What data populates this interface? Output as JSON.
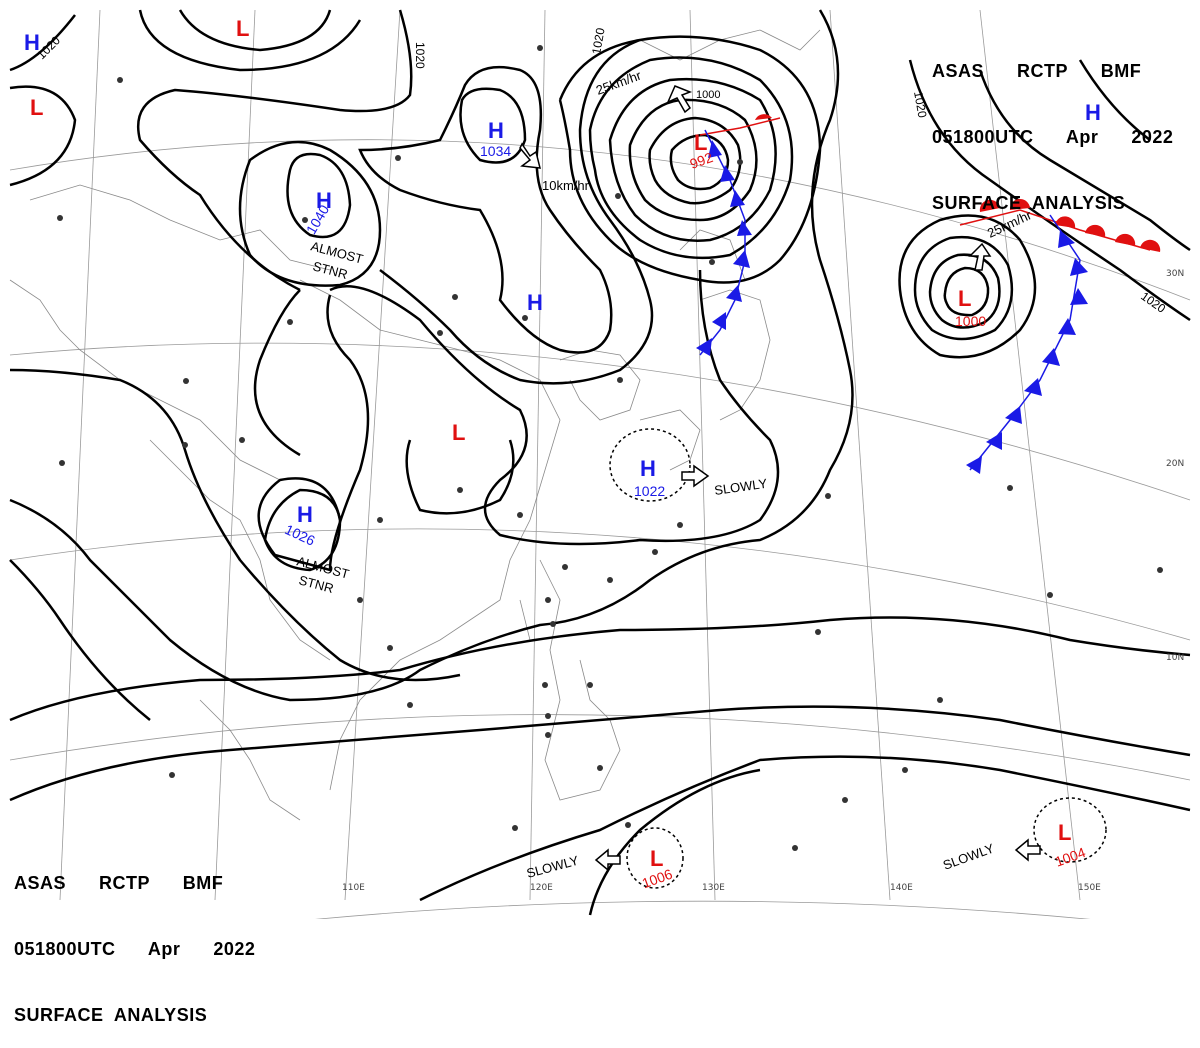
{
  "header_top": {
    "line1": "ASAS      RCTP      BMF",
    "line2": "051800UTC      Apr      2022",
    "line3": "SURFACE  ANALYSIS"
  },
  "header_bottom": {
    "line1": "ASAS      RCTP      BMF",
    "line2": "051800UTC      Apr      2022",
    "line3": "SURFACE  ANALYSIS"
  },
  "isobar_labels": {
    "a": "1020",
    "b": "1020",
    "c": "1020",
    "d": "1020",
    "e": "1020"
  },
  "pressure_centers": {
    "h1": {
      "letter": "H",
      "value": "1034"
    },
    "h2": {
      "letter": "H",
      "value": "1040"
    },
    "h3": {
      "letter": "H",
      "value": ""
    },
    "h4": {
      "letter": "H",
      "value": "1026"
    },
    "h5": {
      "letter": "H",
      "value": "1022"
    },
    "h6": {
      "letter": "H",
      "value": ""
    },
    "h7": {
      "letter": "H",
      "value": ""
    },
    "l1": {
      "letter": "L",
      "value": "992"
    },
    "l2": {
      "letter": "L",
      "value": "1000"
    },
    "l3": {
      "letter": "L",
      "value": ""
    },
    "l4": {
      "letter": "L",
      "value": ""
    },
    "l5": {
      "letter": "L",
      "value": ""
    },
    "l6": {
      "letter": "L",
      "value": "1006"
    },
    "l7": {
      "letter": "L",
      "value": "1004"
    }
  },
  "annotations": {
    "stnr1": "ALMOST",
    "stnr1b": "STNR",
    "stnr2": "ALMOST",
    "stnr2b": "STNR",
    "motion1": "25km/hr",
    "motion2": "10km/hr",
    "motion3": "25km/hr",
    "slowly1": "SLOWLY",
    "slowly2": "SLOWLY",
    "slowly3": "SLOWLY",
    "tiny_1000": "1000"
  },
  "graticule": {
    "lat_30": "30N",
    "lat_20": "20N",
    "lat_10": "10N",
    "lon_110": "110E",
    "lon_120": "120E",
    "lon_130": "130E",
    "lon_140": "140E",
    "lon_150": "150E"
  },
  "colors": {
    "high": "#1a1ae6",
    "low": "#e01010",
    "isobar": "#000000",
    "cold_front": "#1a1ae6",
    "warm_front": "#e01010",
    "coast": "#8a8a8a"
  }
}
